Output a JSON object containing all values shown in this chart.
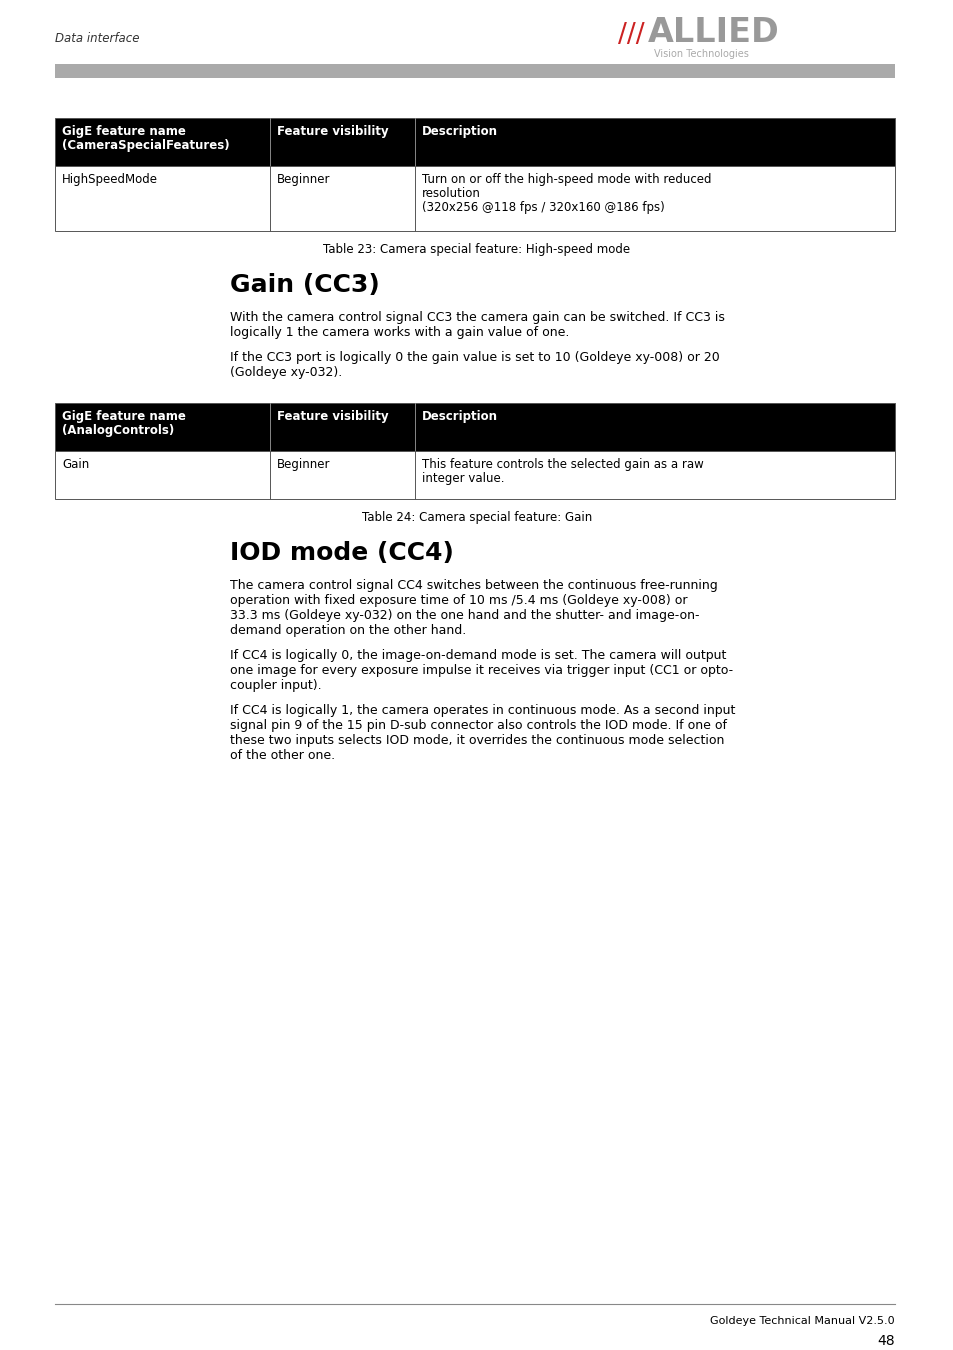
{
  "page_header_left": "Data interface",
  "logo_slashes": "///",
  "logo_text_main": "ALLIED",
  "logo_text_sub": "Vision Technologies",
  "header_bar_color": "#aaaaaa",
  "table1_header_col1a": "GigE feature name",
  "table1_header_col1b": "(CameraSpecialFeatures)",
  "table1_header_col2": "Feature visibility",
  "table1_header_col3": "Description",
  "table1_row1_col1": "HighSpeedMode",
  "table1_row1_col2": "Beginner",
  "table1_row1_col3a": "Turn on or off the high-speed mode with reduced",
  "table1_row1_col3b": "resolution",
  "table1_row1_col3c": "(320x256 @118 fps / 320x160 @186 fps)",
  "table1_caption": "Table 23: Camera special feature: High-speed mode",
  "section1_title": "Gain (CC3)",
  "section1_para1a": "With the camera control signal CC3 the camera gain can be switched. If CC3 is",
  "section1_para1b": "logically 1 the camera works with a gain value of one.",
  "section1_para2a": "If the CC3 port is logically 0 the gain value is set to 10 (Goldeye xy-008) or 20",
  "section1_para2b": "(Goldeye xy-032).",
  "table2_header_col1a": "GigE feature name",
  "table2_header_col1b": "(AnalogControls)",
  "table2_header_col2": "Feature visibility",
  "table2_header_col3": "Description",
  "table2_row1_col1": "Gain",
  "table2_row1_col2": "Beginner",
  "table2_row1_col3a": "This feature controls the selected gain as a raw",
  "table2_row1_col3b": "integer value.",
  "table2_caption": "Table 24: Camera special feature: Gain",
  "section2_title": "IOD mode (CC4)",
  "section2_para1a": "The camera control signal CC4 switches between the continuous free-running",
  "section2_para1b": "operation with fixed exposure time of 10 ms /5.4 ms (Goldeye xy-008) or",
  "section2_para1c": "33.3 ms (Goldeye xy-032) on the one hand and the shutter- and image-on-",
  "section2_para1d": "demand operation on the other hand.",
  "section2_para2a": "If CC4 is logically 0, the image-on-demand mode is set. The camera will output",
  "section2_para2b": "one image for every exposure impulse it receives via trigger input (CC1 or opto-",
  "section2_para2c": "coupler input).",
  "section2_para3a": "If CC4 is logically 1, the camera operates in continuous mode. As a second input",
  "section2_para3b": "signal pin 9 of the 15 pin D-sub connector also controls the IOD mode. If one of",
  "section2_para3c": "these two inputs selects IOD mode, it overrides the continuous mode selection",
  "section2_para3d": "of the other one.",
  "footer_text": "Goldeye Technical Manual V2.5.0",
  "footer_page": "48",
  "table_header_bg": "#000000",
  "table_header_fg": "#ffffff",
  "table_border_color": "#555555",
  "body_font": "DejaVu Sans"
}
